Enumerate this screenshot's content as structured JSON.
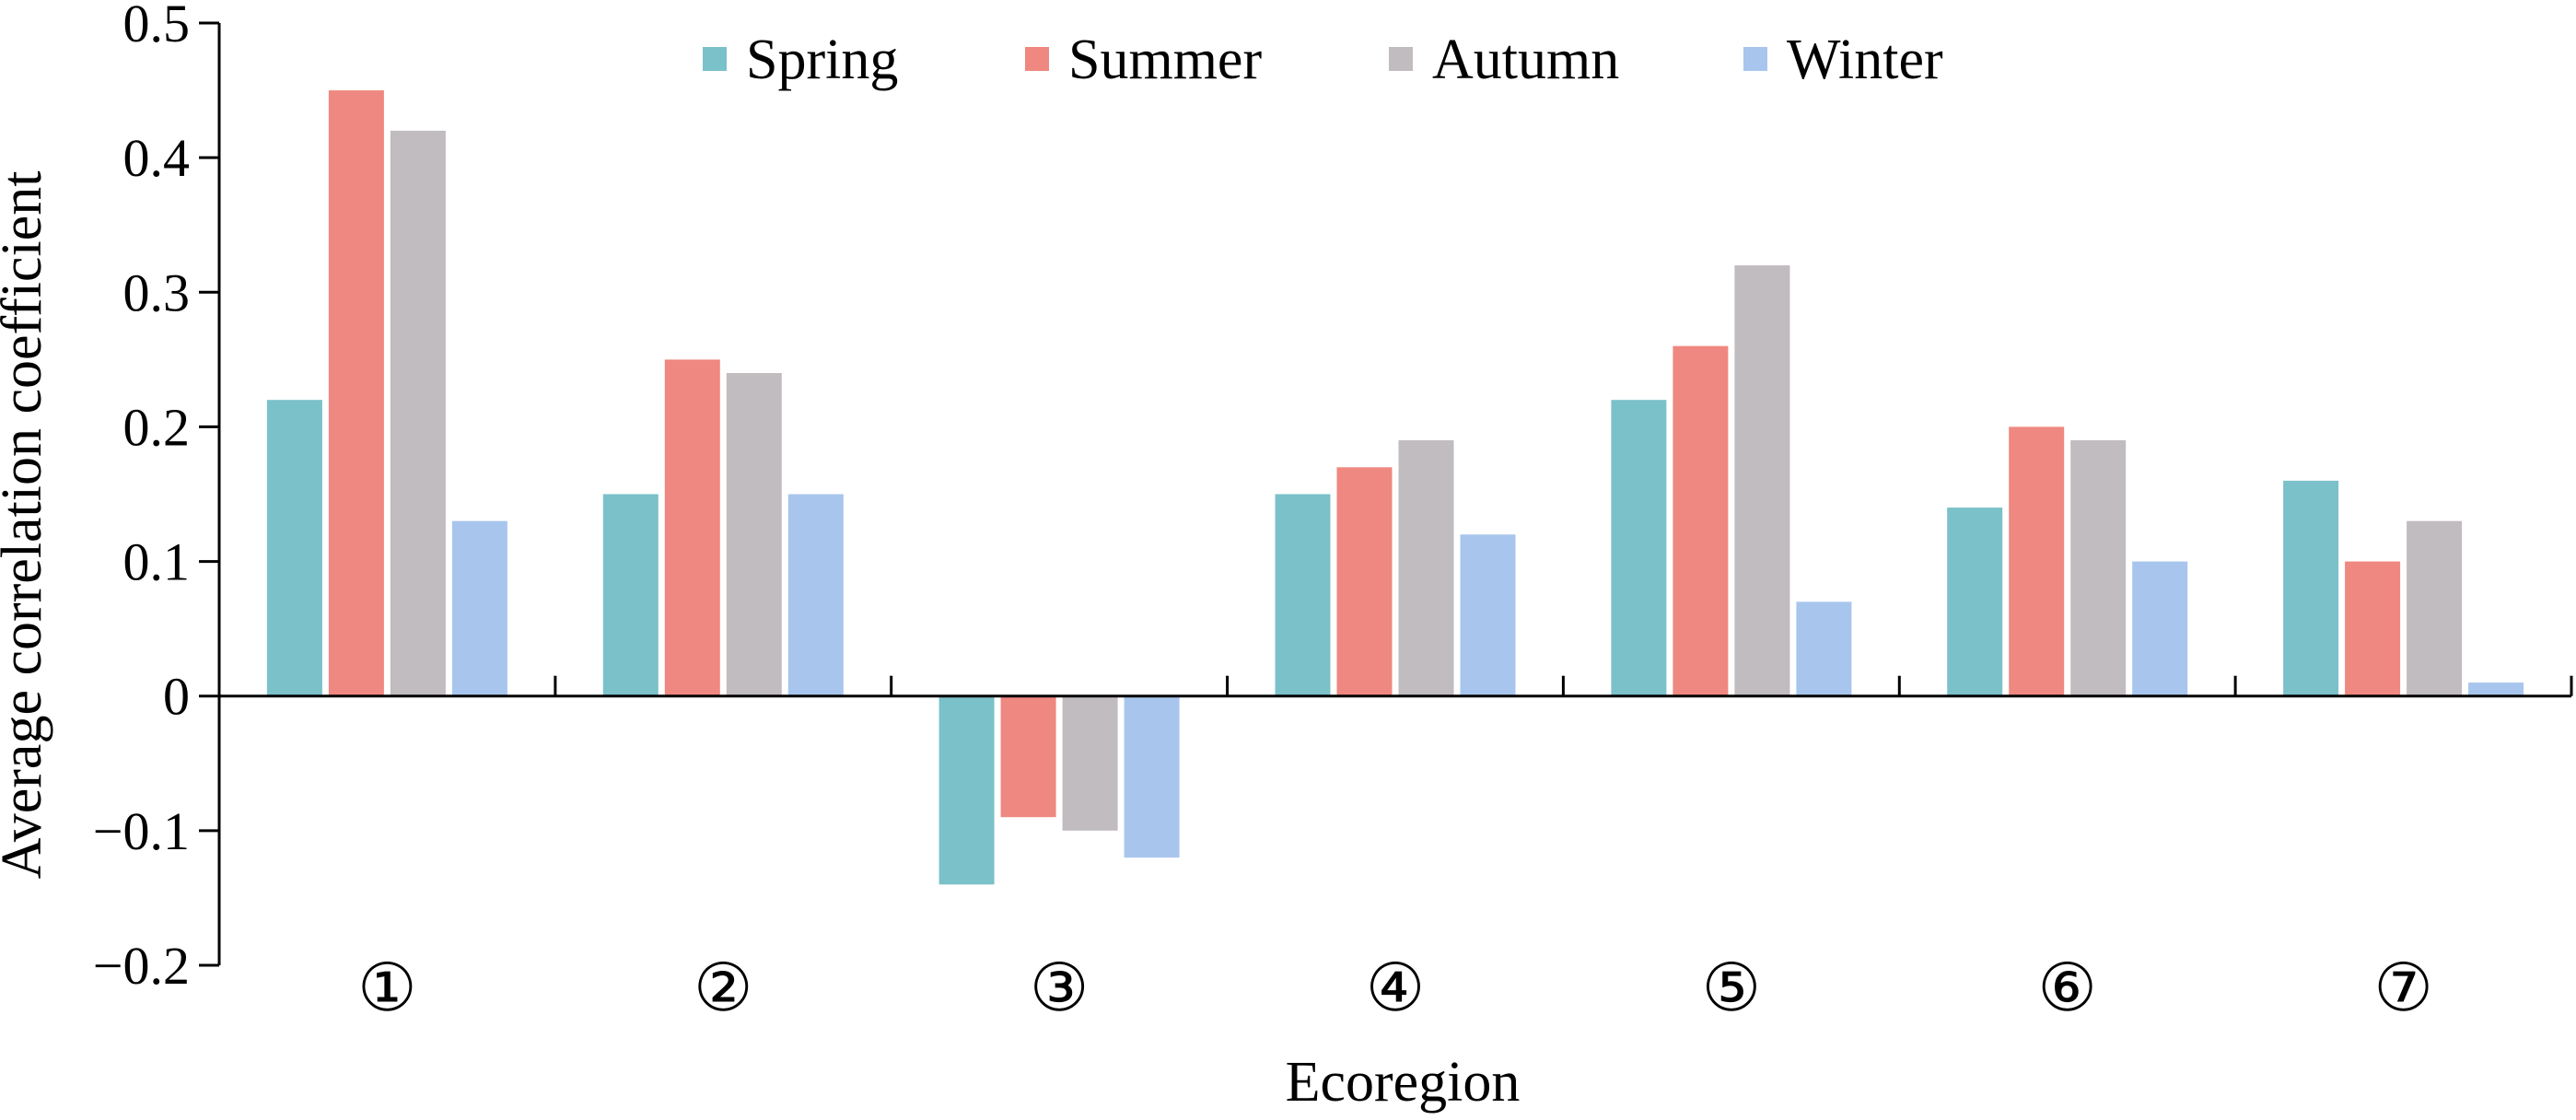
{
  "chart_data": {
    "type": "bar",
    "title": "",
    "xlabel": "Ecoregion",
    "ylabel": "Average correlation coefficient",
    "categories": [
      "①",
      "②",
      "③",
      "④",
      "⑤",
      "⑥",
      "⑦"
    ],
    "series": [
      {
        "name": "Spring",
        "color": "#7bc1c9",
        "values": [
          0.22,
          0.15,
          -0.14,
          0.15,
          0.22,
          0.14,
          0.16
        ]
      },
      {
        "name": "Summer",
        "color": "#ef8880",
        "values": [
          0.45,
          0.25,
          -0.09,
          0.17,
          0.26,
          0.2,
          0.1
        ]
      },
      {
        "name": "Autumn",
        "color": "#c1bcbf",
        "values": [
          0.42,
          0.24,
          -0.1,
          0.19,
          0.32,
          0.19,
          0.13
        ]
      },
      {
        "name": "Winter",
        "color": "#a8c5ed",
        "values": [
          0.13,
          0.15,
          -0.12,
          0.12,
          0.07,
          0.1,
          0.01
        ]
      }
    ],
    "ylim": [
      -0.2,
      0.5
    ],
    "yticks": [
      "-0.2",
      "-0.1",
      "0",
      "0.1",
      "0.2",
      "0.3",
      "0.4",
      "0.5"
    ],
    "ytick_labels": [
      "−0.2",
      "−0.1",
      "0",
      "0.1",
      "0.2",
      "0.3",
      "0.4",
      "0.5"
    ],
    "grid": false,
    "legend_position": "top"
  }
}
